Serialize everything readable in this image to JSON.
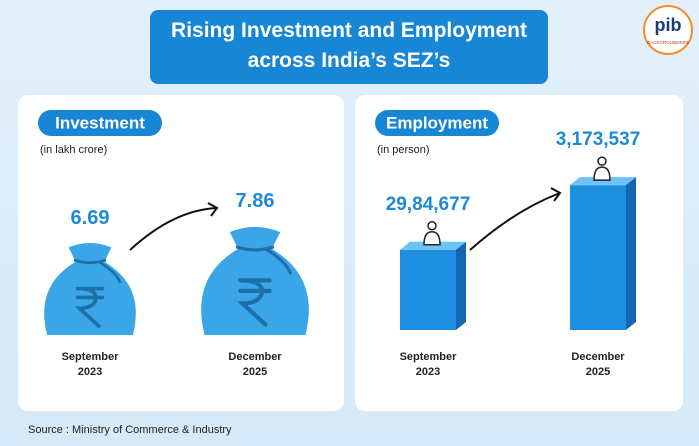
{
  "title": "Rising Investment and Employment across India’s SEZ’s",
  "logo": {
    "name": "pib",
    "tagline": "BACKGROUNDERS"
  },
  "chart_data": [
    {
      "type": "pictogram",
      "title": "Investment",
      "subtitle": "(in lakh crore)",
      "categories": [
        "September 2023",
        "December 2025"
      ],
      "values": [
        6.69,
        7.86
      ],
      "color": "#3aa6e8"
    },
    {
      "type": "bar",
      "title": "Employment",
      "subtitle": "(in person)",
      "categories": [
        "September 2023",
        "December 2025"
      ],
      "values": [
        2984677,
        3173537
      ],
      "value_labels": [
        "29,84,677",
        "3,173,537"
      ],
      "color": "#1e8fe0",
      "ylim": [
        2750000,
        3250000
      ]
    }
  ],
  "source": "Source : Ministry of Commerce & Industry"
}
